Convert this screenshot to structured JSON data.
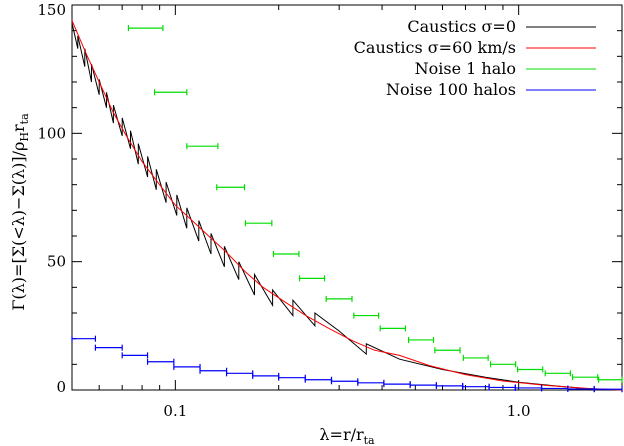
{
  "chart_data": {
    "type": "line",
    "x_scale": "log",
    "xlim": [
      0.05,
      2.0
    ],
    "ylim": [
      0,
      150
    ],
    "xlabel": "λ=r/r_ta",
    "ylabel": "Γ(λ)=[Σ(<λ)−Σ(λ)]/ρ_H r_ta",
    "x_ticks": [
      {
        "value": 0.1,
        "label": "0.1"
      },
      {
        "value": 1.0,
        "label": "1.0"
      }
    ],
    "y_ticks": [
      {
        "value": 0,
        "label": "0"
      },
      {
        "value": 50,
        "label": "50"
      },
      {
        "value": 100,
        "label": "100"
      },
      {
        "value": 150,
        "label": "150"
      }
    ],
    "legend_position": "top-right",
    "series": [
      {
        "name": "Caustics σ=0",
        "color": "#000000",
        "style": "sawtooth",
        "points": [
          {
            "x": 0.05,
            "y": 143
          },
          {
            "x": 0.052,
            "y": 133
          },
          {
            "x": 0.052,
            "y": 138
          },
          {
            "x": 0.0545,
            "y": 126
          },
          {
            "x": 0.0545,
            "y": 133
          },
          {
            "x": 0.057,
            "y": 120
          },
          {
            "x": 0.057,
            "y": 127
          },
          {
            "x": 0.06,
            "y": 115
          },
          {
            "x": 0.06,
            "y": 121
          },
          {
            "x": 0.063,
            "y": 110
          },
          {
            "x": 0.063,
            "y": 116
          },
          {
            "x": 0.066,
            "y": 104
          },
          {
            "x": 0.066,
            "y": 111
          },
          {
            "x": 0.07,
            "y": 99
          },
          {
            "x": 0.07,
            "y": 106
          },
          {
            "x": 0.074,
            "y": 94
          },
          {
            "x": 0.074,
            "y": 101
          },
          {
            "x": 0.078,
            "y": 88
          },
          {
            "x": 0.078,
            "y": 96
          },
          {
            "x": 0.083,
            "y": 83
          },
          {
            "x": 0.083,
            "y": 91
          },
          {
            "x": 0.088,
            "y": 78
          },
          {
            "x": 0.088,
            "y": 86
          },
          {
            "x": 0.094,
            "y": 73
          },
          {
            "x": 0.094,
            "y": 81
          },
          {
            "x": 0.101,
            "y": 68
          },
          {
            "x": 0.101,
            "y": 76
          },
          {
            "x": 0.108,
            "y": 63
          },
          {
            "x": 0.108,
            "y": 71
          },
          {
            "x": 0.117,
            "y": 58
          },
          {
            "x": 0.117,
            "y": 66
          },
          {
            "x": 0.127,
            "y": 53
          },
          {
            "x": 0.127,
            "y": 61
          },
          {
            "x": 0.139,
            "y": 48
          },
          {
            "x": 0.139,
            "y": 56
          },
          {
            "x": 0.153,
            "y": 43
          },
          {
            "x": 0.153,
            "y": 50
          },
          {
            "x": 0.17,
            "y": 37
          },
          {
            "x": 0.17,
            "y": 45
          },
          {
            "x": 0.192,
            "y": 33
          },
          {
            "x": 0.192,
            "y": 39
          },
          {
            "x": 0.22,
            "y": 29
          },
          {
            "x": 0.22,
            "y": 35
          },
          {
            "x": 0.255,
            "y": 25
          },
          {
            "x": 0.255,
            "y": 30
          },
          {
            "x": 0.3,
            "y": 23
          },
          {
            "x": 0.36,
            "y": 14
          },
          {
            "x": 0.36,
            "y": 18
          },
          {
            "x": 0.45,
            "y": 12
          },
          {
            "x": 0.6,
            "y": 8
          },
          {
            "x": 0.8,
            "y": 5
          },
          {
            "x": 1.0,
            "y": 3
          },
          {
            "x": 1.3,
            "y": 1.5
          },
          {
            "x": 1.6,
            "y": 0.5
          },
          {
            "x": 2.0,
            "y": 0
          }
        ]
      },
      {
        "name": "Caustics σ=60 km/s",
        "color": "#ff0000",
        "style": "smooth",
        "points": [
          {
            "x": 0.05,
            "y": 144
          },
          {
            "x": 0.055,
            "y": 131
          },
          {
            "x": 0.06,
            "y": 120
          },
          {
            "x": 0.066,
            "y": 108
          },
          {
            "x": 0.072,
            "y": 99
          },
          {
            "x": 0.08,
            "y": 89
          },
          {
            "x": 0.09,
            "y": 80
          },
          {
            "x": 0.1,
            "y": 72
          },
          {
            "x": 0.112,
            "y": 66
          },
          {
            "x": 0.125,
            "y": 60
          },
          {
            "x": 0.14,
            "y": 54
          },
          {
            "x": 0.16,
            "y": 46
          },
          {
            "x": 0.18,
            "y": 40
          },
          {
            "x": 0.21,
            "y": 34
          },
          {
            "x": 0.24,
            "y": 29
          },
          {
            "x": 0.28,
            "y": 24
          },
          {
            "x": 0.33,
            "y": 19
          },
          {
            "x": 0.38,
            "y": 15.5
          },
          {
            "x": 0.45,
            "y": 13.5
          },
          {
            "x": 0.55,
            "y": 9.5
          },
          {
            "x": 0.7,
            "y": 6
          },
          {
            "x": 0.9,
            "y": 3.5
          },
          {
            "x": 1.2,
            "y": 1.8
          },
          {
            "x": 1.6,
            "y": 0.6
          },
          {
            "x": 2.0,
            "y": 0
          }
        ]
      },
      {
        "name": "Noise 1 halo",
        "color": "#00dd00",
        "style": "xerror",
        "points": [
          {
            "x": 0.0825,
            "y": 141,
            "x_lo": 0.073,
            "x_hi": 0.092
          },
          {
            "x": 0.0975,
            "y": 116,
            "x_lo": 0.087,
            "x_hi": 0.108
          },
          {
            "x": 0.12,
            "y": 95,
            "x_lo": 0.108,
            "x_hi": 0.133
          },
          {
            "x": 0.145,
            "y": 79,
            "x_lo": 0.132,
            "x_hi": 0.159
          },
          {
            "x": 0.175,
            "y": 65,
            "x_lo": 0.16,
            "x_hi": 0.191
          },
          {
            "x": 0.21,
            "y": 53,
            "x_lo": 0.193,
            "x_hi": 0.229
          },
          {
            "x": 0.25,
            "y": 43.5,
            "x_lo": 0.23,
            "x_hi": 0.272
          },
          {
            "x": 0.3,
            "y": 35.5,
            "x_lo": 0.275,
            "x_hi": 0.327
          },
          {
            "x": 0.36,
            "y": 29,
            "x_lo": 0.331,
            "x_hi": 0.391
          },
          {
            "x": 0.43,
            "y": 24,
            "x_lo": 0.395,
            "x_hi": 0.468
          },
          {
            "x": 0.52,
            "y": 19.5,
            "x_lo": 0.478,
            "x_hi": 0.565
          },
          {
            "x": 0.62,
            "y": 15.5,
            "x_lo": 0.57,
            "x_hi": 0.675
          },
          {
            "x": 0.75,
            "y": 12.5,
            "x_lo": 0.69,
            "x_hi": 0.815
          },
          {
            "x": 0.9,
            "y": 10,
            "x_lo": 0.828,
            "x_hi": 0.98
          },
          {
            "x": 1.08,
            "y": 8,
            "x_lo": 0.993,
            "x_hi": 1.175
          },
          {
            "x": 1.3,
            "y": 6.5,
            "x_lo": 1.195,
            "x_hi": 1.415
          },
          {
            "x": 1.56,
            "y": 5,
            "x_lo": 1.435,
            "x_hi": 1.7
          },
          {
            "x": 1.85,
            "y": 4,
            "x_lo": 1.71,
            "x_hi": 2.0
          }
        ]
      },
      {
        "name": "Noise 100 halos",
        "color": "#0000ff",
        "style": "xerror",
        "points": [
          {
            "x": 0.054,
            "y": 20,
            "x_lo": 0.05,
            "x_hi": 0.0585
          },
          {
            "x": 0.064,
            "y": 16.5,
            "x_lo": 0.0585,
            "x_hi": 0.07
          },
          {
            "x": 0.076,
            "y": 13.5,
            "x_lo": 0.07,
            "x_hi": 0.083
          },
          {
            "x": 0.091,
            "y": 11,
            "x_lo": 0.083,
            "x_hi": 0.099
          },
          {
            "x": 0.108,
            "y": 9,
            "x_lo": 0.099,
            "x_hi": 0.118
          },
          {
            "x": 0.129,
            "y": 7.5,
            "x_lo": 0.118,
            "x_hi": 0.141
          },
          {
            "x": 0.154,
            "y": 6.5,
            "x_lo": 0.141,
            "x_hi": 0.168
          },
          {
            "x": 0.184,
            "y": 5.5,
            "x_lo": 0.168,
            "x_hi": 0.2
          },
          {
            "x": 0.219,
            "y": 4.8,
            "x_lo": 0.2,
            "x_hi": 0.239
          },
          {
            "x": 0.261,
            "y": 4.0,
            "x_lo": 0.239,
            "x_hi": 0.285
          },
          {
            "x": 0.311,
            "y": 3.4,
            "x_lo": 0.285,
            "x_hi": 0.34
          },
          {
            "x": 0.371,
            "y": 2.8,
            "x_lo": 0.34,
            "x_hi": 0.405
          },
          {
            "x": 0.443,
            "y": 2.3,
            "x_lo": 0.405,
            "x_hi": 0.483
          },
          {
            "x": 0.528,
            "y": 1.9,
            "x_lo": 0.483,
            "x_hi": 0.576
          },
          {
            "x": 0.63,
            "y": 1.6,
            "x_lo": 0.576,
            "x_hi": 0.687
          },
          {
            "x": 0.751,
            "y": 1.3,
            "x_lo": 0.687,
            "x_hi": 0.82
          },
          {
            "x": 0.896,
            "y": 1.0,
            "x_lo": 0.82,
            "x_hi": 0.978
          },
          {
            "x": 1.069,
            "y": 0.8,
            "x_lo": 0.978,
            "x_hi": 1.166
          },
          {
            "x": 1.275,
            "y": 0.6,
            "x_lo": 1.166,
            "x_hi": 1.391
          },
          {
            "x": 1.52,
            "y": 0.4,
            "x_lo": 1.391,
            "x_hi": 1.66
          },
          {
            "x": 1.82,
            "y": 0.3,
            "x_lo": 1.66,
            "x_hi": 2.0
          }
        ]
      }
    ]
  }
}
